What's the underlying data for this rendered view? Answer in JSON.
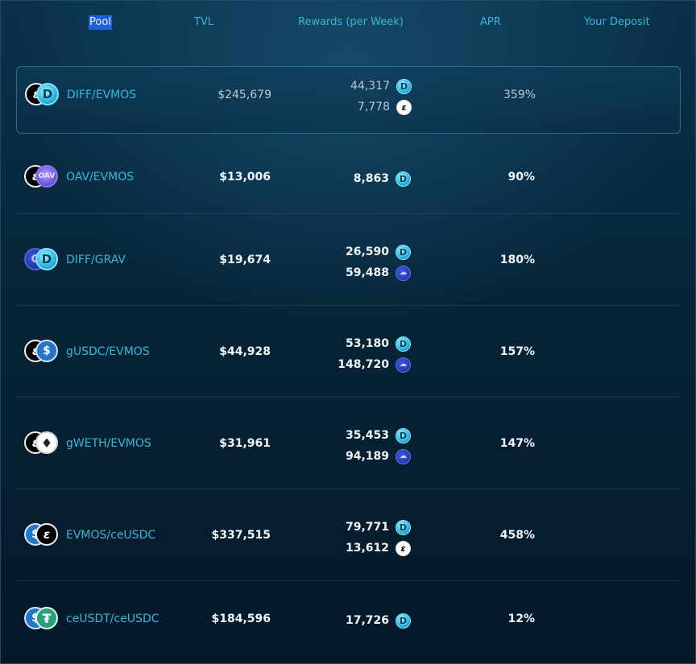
{
  "header": {
    "pool": "Pool",
    "tvl": "TVL",
    "rewards": "Rewards (per Week)",
    "apr": "APR",
    "deposit": "Your Deposit"
  },
  "pools": [
    {
      "name": "DIFF/EVMOS",
      "tvl": "$245,679",
      "apr": "359%",
      "token_icons": [
        "evmos-icon",
        "diff-icon"
      ],
      "rewards": [
        {
          "amount": "44,317",
          "token_icon": "diff-icon"
        },
        {
          "amount": "7,778",
          "token_icon": "evmos-icon"
        }
      ]
    },
    {
      "name": "OAV/EVMOS",
      "tvl": "$13,006",
      "apr": "90%",
      "token_icons": [
        "evmos-icon",
        "oav-icon"
      ],
      "rewards": [
        {
          "amount": "8,863",
          "token_icon": "diff-icon"
        }
      ]
    },
    {
      "name": "DIFF/GRAV",
      "tvl": "$19,674",
      "apr": "180%",
      "token_icons": [
        "grav-icon",
        "diff-icon"
      ],
      "rewards": [
        {
          "amount": "26,590",
          "token_icon": "diff-icon"
        },
        {
          "amount": "59,488",
          "token_icon": "grav-icon"
        }
      ]
    },
    {
      "name": "gUSDC/EVMOS",
      "tvl": "$44,928",
      "apr": "157%",
      "token_icons": [
        "evmos-icon",
        "usdc-icon"
      ],
      "rewards": [
        {
          "amount": "53,180",
          "token_icon": "diff-icon"
        },
        {
          "amount": "148,720",
          "token_icon": "grav-icon"
        }
      ]
    },
    {
      "name": "gWETH/EVMOS",
      "tvl": "$31,961",
      "apr": "147%",
      "token_icons": [
        "evmos-icon",
        "eth-icon"
      ],
      "rewards": [
        {
          "amount": "35,453",
          "token_icon": "diff-icon"
        },
        {
          "amount": "94,189",
          "token_icon": "grav-icon"
        }
      ]
    },
    {
      "name": "EVMOS/ceUSDC",
      "tvl": "$337,515",
      "apr": "458%",
      "token_icons": [
        "usdc-icon",
        "evmos-icon"
      ],
      "rewards": [
        {
          "amount": "79,771",
          "token_icon": "diff-icon"
        },
        {
          "amount": "13,612",
          "token_icon": "evmos-icon"
        }
      ]
    },
    {
      "name": "ceUSDT/ceUSDC",
      "tvl": "$184,596",
      "apr": "12%",
      "token_icons": [
        "usdc-icon",
        "usdt-icon"
      ],
      "rewards": [
        {
          "amount": "17,726",
          "token_icon": "diff-icon"
        }
      ]
    }
  ]
}
